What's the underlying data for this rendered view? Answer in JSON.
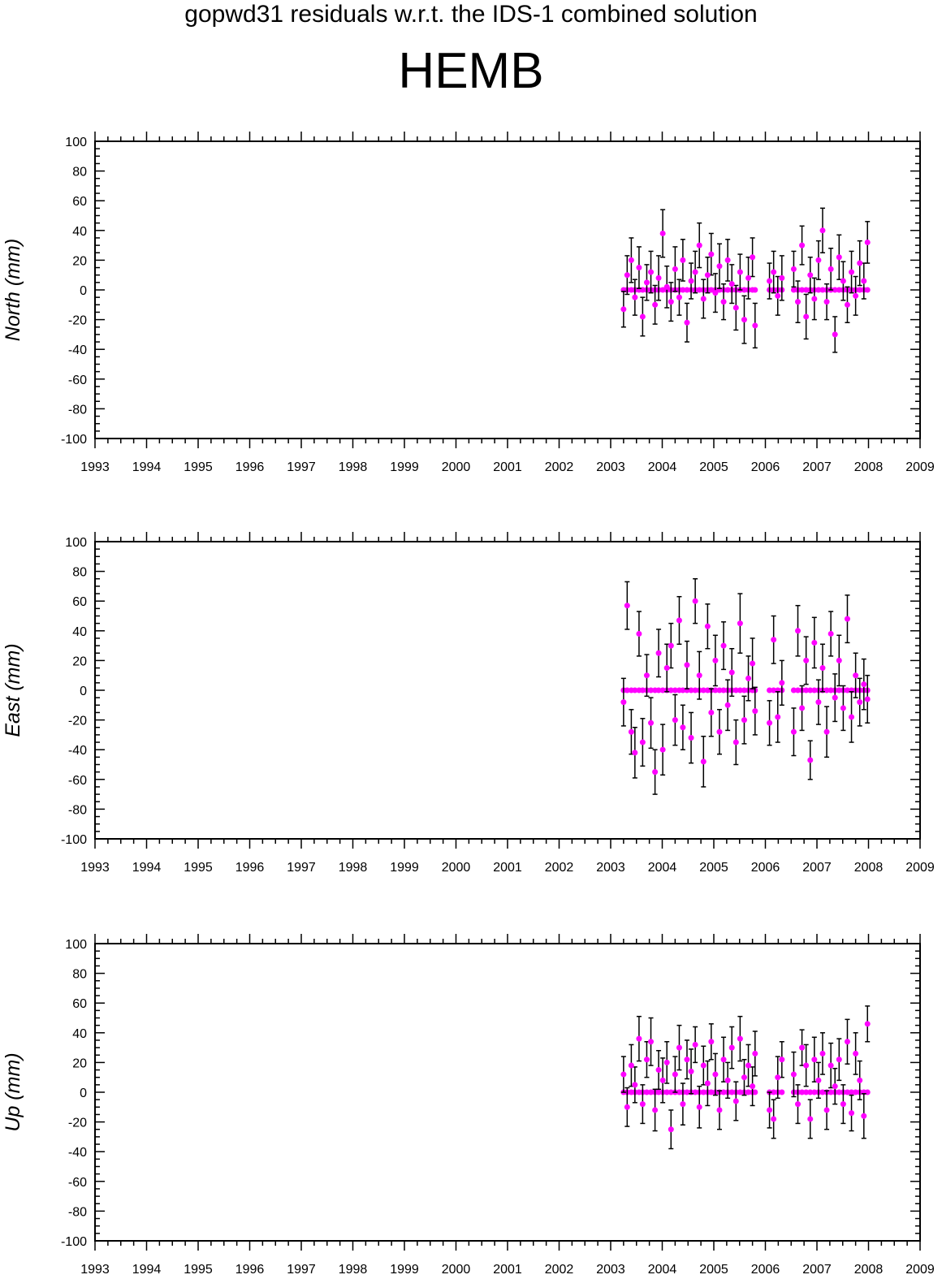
{
  "header": {
    "title": "gopwd31 residuals w.r.t. the IDS-1 combined solution",
    "station": "HEMB"
  },
  "colors": {
    "point": "#ff00ff",
    "errorbar": "#000000",
    "axis": "#000000"
  },
  "chart_data": [
    {
      "type": "scatter",
      "panel": "north",
      "ylabel": "North (mm)",
      "xlim": [
        1993,
        2009
      ],
      "ylim": [
        -100,
        100
      ],
      "xticks": [
        "1993",
        "1994",
        "1995",
        "1996",
        "1997",
        "1998",
        "1999",
        "2000",
        "2001",
        "2002",
        "2003",
        "2004",
        "2005",
        "2006",
        "2007",
        "2008",
        "2009"
      ],
      "yticks": [
        "100",
        "80",
        "60",
        "40",
        "20",
        "0",
        "-20",
        "-40",
        "-60",
        "-80",
        "-100"
      ],
      "error_bars": true,
      "x": [
        2003.25,
        2003.32,
        2003.4,
        2003.47,
        2003.55,
        2003.62,
        2003.7,
        2003.78,
        2003.86,
        2003.93,
        2004.01,
        2004.09,
        2004.17,
        2004.25,
        2004.33,
        2004.4,
        2004.48,
        2004.56,
        2004.64,
        2004.72,
        2004.8,
        2004.88,
        2004.95,
        2005.03,
        2005.11,
        2005.19,
        2005.27,
        2005.35,
        2005.43,
        2005.51,
        2005.59,
        2005.67,
        2005.75,
        2005.8,
        2006.08,
        2006.16,
        2006.24,
        2006.32,
        2006.55,
        2006.63,
        2006.71,
        2006.79,
        2006.87,
        2006.95,
        2007.03,
        2007.11,
        2007.19,
        2007.27,
        2007.35,
        2007.43,
        2007.51,
        2007.59,
        2007.67,
        2007.75,
        2007.83,
        2007.91,
        2007.98
      ],
      "y": [
        -13,
        10,
        20,
        -5,
        15,
        -18,
        5,
        12,
        -10,
        8,
        38,
        2,
        -8,
        14,
        -5,
        20,
        -22,
        6,
        12,
        30,
        -6,
        10,
        24,
        -2,
        16,
        -8,
        20,
        4,
        -12,
        12,
        -20,
        8,
        22,
        -24,
        6,
        12,
        -4,
        8,
        14,
        -8,
        30,
        -18,
        10,
        -6,
        20,
        40,
        -8,
        14,
        -30,
        22,
        6,
        -10,
        12,
        -4,
        18,
        6,
        32
      ],
      "err": [
        12,
        13,
        15,
        12,
        14,
        13,
        12,
        14,
        13,
        15,
        16,
        14,
        13,
        15,
        12,
        14,
        13,
        12,
        14,
        15,
        13,
        12,
        14,
        13,
        15,
        12,
        14,
        13,
        15,
        12,
        16,
        14,
        13,
        15,
        12,
        14,
        13,
        15,
        12,
        14,
        13,
        15,
        12,
        14,
        13,
        15,
        12,
        14,
        12,
        15,
        13,
        12,
        14,
        13,
        15,
        12,
        14
      ]
    },
    {
      "type": "scatter",
      "panel": "east",
      "ylabel": "East (mm)",
      "xlim": [
        1993,
        2009
      ],
      "ylim": [
        -100,
        100
      ],
      "xticks": [
        "1993",
        "1994",
        "1995",
        "1996",
        "1997",
        "1998",
        "1999",
        "2000",
        "2001",
        "2002",
        "2003",
        "2004",
        "2005",
        "2006",
        "2007",
        "2008",
        "2009"
      ],
      "yticks": [
        "100",
        "80",
        "60",
        "40",
        "20",
        "0",
        "-20",
        "-40",
        "-60",
        "-80",
        "-100"
      ],
      "error_bars": true,
      "x": [
        2003.25,
        2003.32,
        2003.4,
        2003.47,
        2003.55,
        2003.62,
        2003.7,
        2003.78,
        2003.86,
        2003.93,
        2004.01,
        2004.09,
        2004.17,
        2004.25,
        2004.33,
        2004.4,
        2004.48,
        2004.56,
        2004.64,
        2004.72,
        2004.8,
        2004.88,
        2004.95,
        2005.03,
        2005.11,
        2005.19,
        2005.27,
        2005.35,
        2005.43,
        2005.51,
        2005.59,
        2005.67,
        2005.75,
        2005.8,
        2006.08,
        2006.16,
        2006.24,
        2006.32,
        2006.55,
        2006.63,
        2006.71,
        2006.79,
        2006.87,
        2006.95,
        2007.03,
        2007.11,
        2007.19,
        2007.27,
        2007.35,
        2007.43,
        2007.51,
        2007.59,
        2007.67,
        2007.75,
        2007.83,
        2007.91,
        2007.98
      ],
      "y": [
        -8,
        57,
        -28,
        -42,
        38,
        -35,
        10,
        -22,
        -55,
        25,
        -40,
        15,
        30,
        -20,
        47,
        -25,
        17,
        -32,
        60,
        10,
        -48,
        43,
        -15,
        20,
        -28,
        30,
        -10,
        12,
        -35,
        45,
        -20,
        8,
        18,
        -14,
        -22,
        34,
        -18,
        5,
        -28,
        40,
        -12,
        20,
        -47,
        32,
        -8,
        15,
        -28,
        38,
        -5,
        20,
        -12,
        48,
        -18,
        10,
        -8,
        4,
        -6
      ],
      "err": [
        16,
        16,
        15,
        17,
        15,
        16,
        14,
        17,
        15,
        16,
        17,
        16,
        15,
        17,
        16,
        15,
        16,
        17,
        15,
        16,
        17,
        15,
        16,
        17,
        15,
        16,
        17,
        16,
        15,
        20,
        16,
        15,
        17,
        16,
        15,
        16,
        17,
        15,
        16,
        17,
        15,
        16,
        13,
        17,
        15,
        16,
        17,
        15,
        16,
        17,
        15,
        16,
        17,
        15,
        16,
        17,
        16
      ]
    },
    {
      "type": "scatter",
      "panel": "up",
      "ylabel": "Up (mm)",
      "xlim": [
        1993,
        2009
      ],
      "ylim": [
        -100,
        100
      ],
      "xticks": [
        "1993",
        "1994",
        "1995",
        "1996",
        "1997",
        "1998",
        "1999",
        "2000",
        "2001",
        "2002",
        "2003",
        "2004",
        "2005",
        "2006",
        "2007",
        "2008",
        "2009"
      ],
      "yticks": [
        "100",
        "80",
        "60",
        "40",
        "20",
        "0",
        "-20",
        "-40",
        "-60",
        "-80",
        "-100"
      ],
      "error_bars": true,
      "x": [
        2003.25,
        2003.32,
        2003.4,
        2003.47,
        2003.55,
        2003.62,
        2003.7,
        2003.78,
        2003.86,
        2003.93,
        2004.01,
        2004.09,
        2004.17,
        2004.25,
        2004.33,
        2004.4,
        2004.48,
        2004.56,
        2004.64,
        2004.72,
        2004.8,
        2004.88,
        2004.95,
        2005.03,
        2005.11,
        2005.19,
        2005.27,
        2005.35,
        2005.43,
        2005.51,
        2005.59,
        2005.67,
        2005.75,
        2005.8,
        2006.08,
        2006.16,
        2006.24,
        2006.32,
        2006.55,
        2006.63,
        2006.71,
        2006.79,
        2006.87,
        2006.95,
        2007.03,
        2007.11,
        2007.19,
        2007.27,
        2007.35,
        2007.43,
        2007.51,
        2007.59,
        2007.67,
        2007.75,
        2007.83,
        2007.91,
        2007.98
      ],
      "y": [
        12,
        -10,
        18,
        5,
        36,
        -8,
        22,
        34,
        -12,
        15,
        8,
        20,
        -25,
        12,
        30,
        -8,
        22,
        14,
        32,
        -10,
        18,
        6,
        34,
        12,
        -12,
        22,
        8,
        30,
        -6,
        36,
        10,
        18,
        4,
        26,
        -12,
        -18,
        10,
        22,
        12,
        -8,
        30,
        18,
        -18,
        22,
        8,
        26,
        -12,
        18,
        4,
        22,
        -8,
        34,
        -14,
        26,
        8,
        -16,
        46
      ],
      "err": [
        12,
        13,
        14,
        12,
        15,
        13,
        12,
        16,
        14,
        13,
        15,
        14,
        13,
        12,
        15,
        14,
        13,
        15,
        12,
        14,
        13,
        15,
        12,
        14,
        13,
        15,
        12,
        14,
        13,
        15,
        12,
        14,
        13,
        15,
        12,
        13,
        14,
        12,
        15,
        13,
        12,
        14,
        13,
        15,
        12,
        14,
        13,
        15,
        12,
        14,
        13,
        15,
        12,
        14,
        13,
        15,
        12
      ]
    }
  ]
}
